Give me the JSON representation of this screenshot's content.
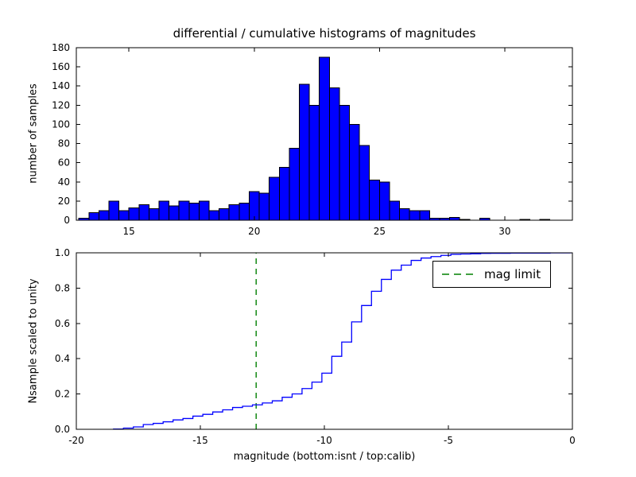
{
  "figure": {
    "background": "#ffffff",
    "axes_edge_color": "#000000"
  },
  "chart_data": [
    {
      "type": "bar",
      "name": "differential-histogram",
      "title": "differential / cumulative histograms of magnitudes",
      "ylabel": "number of samples",
      "bar_color": "#0000ff",
      "bar_edge_color": "#000000",
      "bin_start": 13.0,
      "bin_width": 0.4,
      "values": [
        2,
        8,
        10,
        20,
        10,
        13,
        16,
        12,
        20,
        15,
        20,
        18,
        20,
        10,
        12,
        16,
        18,
        30,
        28,
        45,
        55,
        75,
        142,
        120,
        170,
        138,
        120,
        100,
        78,
        42,
        40,
        20,
        12,
        10,
        10,
        2,
        2,
        3,
        1,
        0,
        2,
        0,
        0,
        0,
        1,
        0,
        1
      ],
      "xlim": [
        12.9,
        32.7
      ],
      "ylim": [
        0,
        180
      ],
      "xticks": [
        15,
        20,
        25,
        30
      ],
      "xtick_labels": [
        "15",
        "20",
        "25",
        "30"
      ],
      "yticks": [
        0,
        20,
        40,
        60,
        80,
        100,
        120,
        140,
        160,
        180
      ],
      "ytick_labels": [
        "0",
        "20",
        "40",
        "60",
        "80",
        "100",
        "120",
        "140",
        "160",
        "180"
      ],
      "grid": false
    },
    {
      "type": "line",
      "name": "cumulative-histogram",
      "style": "step",
      "ylabel": "Nsample scaled to unity",
      "xlabel": "magnitude (bottom:isnt / top:calib)",
      "line_color": "#0000ff",
      "bin_start": -18.5,
      "bin_width": 0.4,
      "cumulative_fraction": [
        0.0013,
        0.0067,
        0.0134,
        0.0269,
        0.0336,
        0.0424,
        0.0531,
        0.0612,
        0.0746,
        0.0847,
        0.0982,
        0.1103,
        0.1237,
        0.1305,
        0.1385,
        0.1493,
        0.1614,
        0.1816,
        0.2004,
        0.2307,
        0.2676,
        0.3181,
        0.4136,
        0.4943,
        0.6086,
        0.7014,
        0.7821,
        0.8493,
        0.9018,
        0.9301,
        0.957,
        0.9704,
        0.9785,
        0.9852,
        0.9919,
        0.9933,
        0.9946,
        0.9966,
        0.9973,
        0.9973,
        0.9987,
        0.9987,
        0.9987,
        0.9987,
        0.9993,
        0.9993,
        1.0
      ],
      "xlim": [
        -20,
        0
      ],
      "ylim": [
        0,
        1
      ],
      "xticks": [
        -20,
        -15,
        -10,
        -5,
        0
      ],
      "xtick_labels": [
        "-20",
        "-15",
        "-10",
        "-5",
        "0"
      ],
      "yticks": [
        0,
        0.2,
        0.4,
        0.6,
        0.8,
        1.0
      ],
      "ytick_labels": [
        "0.0",
        "0.2",
        "0.4",
        "0.6",
        "0.8",
        "1.0"
      ],
      "grid": false,
      "mag_limit": {
        "x": -12.75,
        "color": "#008000",
        "dashed": true,
        "label": "mag limit"
      },
      "legend": {
        "label": "mag limit",
        "position": "upper right"
      }
    }
  ]
}
